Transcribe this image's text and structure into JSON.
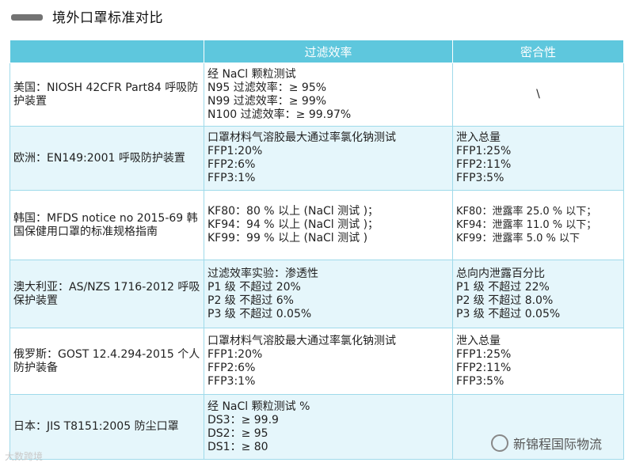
{
  "title": "境外口罩标准对比",
  "headers": [
    "",
    "过滤效率",
    "密合性"
  ],
  "rows": [
    {
      "region": "美国：NIOSH 42CFR Part84 呼吸防护装置",
      "filtration": [
        "经 NaCl 颗粒测试",
        "N95 过滤效率：≥ 95%",
        "N99 过滤效率：≥ 99%",
        "N100 过滤效率：≥ 99.97%"
      ],
      "fit": [
        "\\"
      ]
    },
    {
      "region": "欧洲：EN149:2001 呼吸防护装置",
      "filtration": [
        "口罩材料气溶胶最大通过率氯化钠测试",
        "FFP1:20%",
        "FFP2:6%",
        "FFP3:1%"
      ],
      "fit": [
        "泄入总量",
        "FFP1:25%",
        "FFP2:11%",
        "FFP3:5%"
      ]
    },
    {
      "region": "韩国：MFDS notice no 2015-69 韩国保健用口罩的标准规格指南",
      "filtration": [
        "KF80：80 % 以上 (NaCl 测试 )；",
        "KF94：94 % 以上 (NaCl 测试 )；",
        "KF99：99 % 以上 (NaCl 测试 )"
      ],
      "fit": [
        "KF80：泄露率 25.0 % 以下；",
        "KF94：泄露率 11.0 % 以下；",
        "KF99：泄露率 5.0 % 以下"
      ]
    },
    {
      "region": "澳大利亚：AS/NZS 1716-2012 呼吸保护装置",
      "filtration": [
        "过滤效率实验：渗透性",
        "P1 级 不超过 20%",
        "P2 级 不超过 6%",
        "P3 级 不超过 0.05%"
      ],
      "fit": [
        "总向内泄露百分比",
        "P1 级 不超过 22%",
        "P2 级 不超过 8.0%",
        "P3 级 不超过 0.05%"
      ]
    },
    {
      "region": "俄罗斯：GOST 12.4.294-2015 个人防护装备",
      "filtration": [
        "口罩材料气溶胶最大通过率氯化钠测试",
        "FFP1:20%",
        "FFP2:6%",
        "FFP3:1%"
      ],
      "fit": [
        "泄入总量",
        "FFP1:25%",
        "FFP2:11%",
        "FFP3:5%"
      ]
    },
    {
      "region": "日本：JIS T8151:2005 防尘口罩",
      "filtration": [
        "经 NaCl 颗粒测试 %",
        "DS3：≥ 99.9",
        "DS2：≥ 95",
        "DS1：≥ 80"
      ],
      "fit": []
    }
  ],
  "watermark_left": "大数跨境",
  "watermark_right": "新锦程国际物流",
  "colors": {
    "header": "#5ec7dd",
    "row_alt": "#e5f6fb",
    "border": "#9fdaea"
  }
}
